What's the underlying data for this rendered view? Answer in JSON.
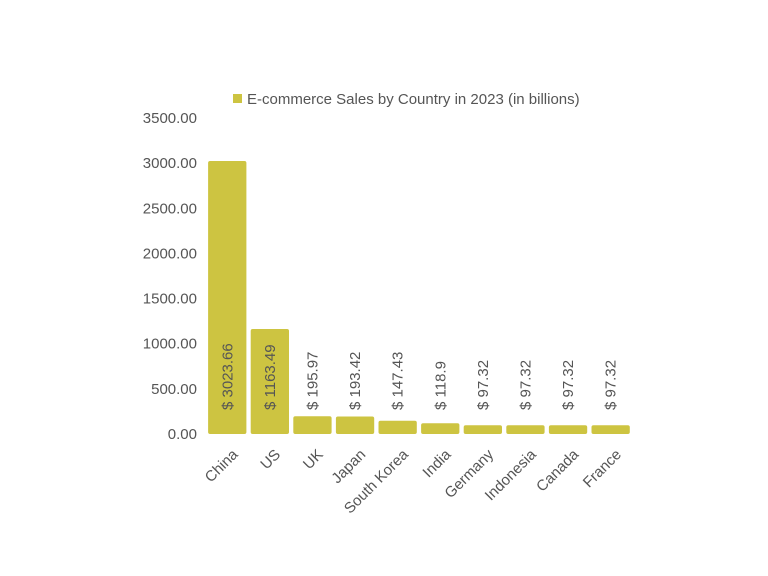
{
  "chart_data": {
    "type": "bar",
    "title": "",
    "xlabel": "",
    "ylabel": "",
    "ylim": [
      0,
      3500
    ],
    "yticks": [
      "0.00",
      "500.00",
      "1000.00",
      "1500.00",
      "2000.00",
      "2500.00",
      "3000.00",
      "3500.00"
    ],
    "grid": false,
    "legend_position": "top",
    "categories": [
      "China",
      "US",
      "UK",
      "Japan",
      "South Korea",
      "India",
      "Germany",
      "Indonesia",
      "Canada",
      "France"
    ],
    "series": [
      {
        "name": "E-commerce Sales by Country in 2023 (in billions)",
        "color": "#cdc441",
        "values": [
          3023.66,
          1163.49,
          195.97,
          193.42,
          147.43,
          118.9,
          97.32,
          97.32,
          97.32,
          97.32
        ],
        "labels": [
          "$ 3023.66",
          "$ 1163.49",
          "$ 195.97",
          "$ 193.42",
          "$ 147.43",
          "$ 118.9",
          "$ 97.32",
          "$ 97.32",
          "$ 97.32",
          "$ 97.32"
        ]
      }
    ]
  }
}
